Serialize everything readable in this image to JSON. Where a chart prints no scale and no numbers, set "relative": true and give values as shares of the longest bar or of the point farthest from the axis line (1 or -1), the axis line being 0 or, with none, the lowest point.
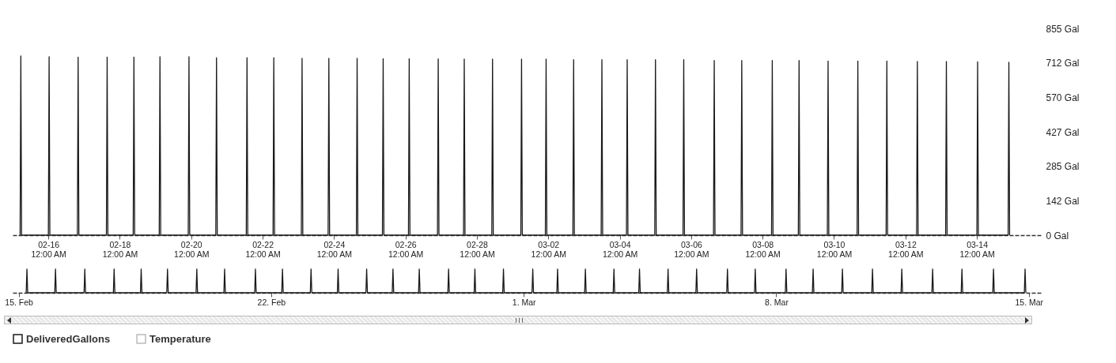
{
  "chart_data": [
    {
      "type": "line",
      "x": [
        "--02-15T05:00",
        "--02-15T05:30",
        "--02-15T06:00",
        "--02-16T00:00",
        "--02-16T00:30",
        "--02-16T01:00",
        "--02-16T19:30",
        "--02-16T20:00",
        "--02-16T20:30",
        "--02-17T15:00",
        "--02-17T15:30",
        "--02-17T16:00",
        "--02-18T09:00",
        "--02-18T09:30",
        "--02-18T10:00",
        "--02-19T02:30",
        "--02-19T03:00",
        "--02-19T03:30",
        "--02-19T22:00",
        "--02-19T22:30",
        "--02-19T23:00",
        "--02-20T16:30",
        "--02-20T17:00",
        "--02-20T17:30",
        "--02-21T13:00",
        "--02-21T13:30",
        "--02-21T14:00",
        "--02-22T07:00",
        "--02-22T07:30",
        "--02-22T08:00",
        "--02-23T02:00",
        "--02-23T02:30",
        "--02-23T03:00",
        "--02-23T20:00",
        "--02-23T20:30",
        "--02-23T21:00",
        "--02-24T15:00",
        "--02-24T15:30",
        "--02-24T16:00",
        "--02-25T08:30",
        "--02-25T09:00",
        "--02-25T09:30",
        "--02-26T02:00",
        "--02-26T02:30",
        "--02-26T03:00",
        "--02-26T21:30",
        "--02-26T22:00",
        "--02-26T22:30",
        "--02-27T15:00",
        "--02-27T15:30",
        "--02-27T16:00",
        "--02-28T10:00",
        "--02-28T10:30",
        "--02-28T11:00",
        "--03-01T05:30",
        "--03-01T06:00",
        "--03-01T06:30",
        "--03-01T22:00",
        "--03-01T22:30",
        "--03-01T23:00",
        "--03-02T16:30",
        "--03-02T17:00",
        "--03-02T17:30",
        "--03-03T11:30",
        "--03-03T12:00",
        "--03-03T12:30",
        "--03-04T04:30",
        "--03-04T05:00",
        "--03-04T05:30",
        "--03-04T23:30",
        "--03-05T00:00",
        "--03-05T00:30",
        "--03-05T18:30",
        "--03-05T19:00",
        "--03-05T19:30",
        "--03-06T15:00",
        "--03-06T15:30",
        "--03-06T16:00",
        "--03-07T09:30",
        "--03-07T10:00",
        "--03-07T10:30",
        "--03-08T06:00",
        "--03-08T06:30",
        "--03-08T07:00",
        "--03-09T00:00",
        "--03-09T00:30",
        "--03-09T01:00",
        "--03-09T19:30",
        "--03-09T20:00",
        "--03-09T20:30",
        "--03-10T15:30",
        "--03-10T16:00",
        "--03-10T16:30",
        "--03-11T11:00",
        "--03-11T11:30",
        "--03-11T12:00",
        "--03-12T07:30",
        "--03-12T08:00",
        "--03-12T08:30",
        "--03-13T03:00",
        "--03-13T03:30",
        "--03-13T04:00",
        "--03-14T00:00",
        "--03-14T00:30",
        "--03-14T01:00",
        "--03-14T21:00",
        "--03-14T21:30",
        "--03-14T22:00"
      ],
      "series": [
        {
          "name": "DeliveredGallons",
          "color": "#1a1a1a",
          "values": [
            0,
            741,
            0,
            0,
            738,
            0,
            0,
            736,
            0,
            0,
            736,
            0,
            0,
            736,
            0,
            0,
            738,
            0,
            0,
            738,
            0,
            0,
            734,
            0,
            0,
            734,
            0,
            0,
            734,
            0,
            0,
            731,
            0,
            0,
            731,
            0,
            0,
            731,
            0,
            0,
            730,
            0,
            0,
            730,
            0,
            0,
            729,
            0,
            0,
            728,
            0,
            0,
            728,
            0,
            0,
            728,
            0,
            0,
            728,
            0,
            0,
            726,
            0,
            0,
            726,
            0,
            0,
            726,
            0,
            0,
            726,
            0,
            0,
            726,
            0,
            0,
            722,
            0,
            0,
            722,
            0,
            0,
            722,
            0,
            0,
            722,
            0,
            0,
            720,
            0,
            0,
            720,
            0,
            0,
            720,
            0,
            0,
            718,
            0,
            0,
            718,
            0,
            0,
            717,
            0,
            0,
            715,
            0
          ]
        },
        {
          "name": "Temperature",
          "color": "#bbbbbb",
          "values": [
            null,
            null,
            null,
            null,
            null,
            null,
            null,
            null,
            null,
            null,
            null,
            null,
            null,
            null,
            null,
            null,
            null,
            null,
            null,
            null,
            null,
            null,
            null,
            null,
            null,
            null,
            null,
            null,
            null,
            null,
            null,
            null,
            null,
            null,
            null,
            null,
            null,
            null,
            null,
            null,
            null,
            null,
            null,
            null,
            null,
            null,
            null,
            null,
            null,
            null,
            null,
            null,
            null,
            null,
            null,
            null,
            null,
            null,
            null,
            null,
            null,
            null,
            null,
            null,
            null,
            null,
            null,
            null,
            null,
            null,
            null,
            null,
            null,
            null,
            null,
            null,
            null,
            null,
            null,
            null,
            null,
            null,
            null,
            null,
            null,
            null,
            null,
            null,
            null,
            null,
            null,
            null,
            null,
            null,
            null,
            null,
            null,
            null,
            null,
            null,
            null,
            null,
            null,
            null,
            null,
            null,
            null,
            null
          ]
        }
      ],
      "xlim": [
        "--02-15T00:00",
        "--03-15T19:00"
      ],
      "xticks": [
        {
          "value": "--02-16",
          "label": "02-16\n12:00 AM"
        },
        {
          "value": "--02-18",
          "label": "02-18\n12:00 AM"
        },
        {
          "value": "--02-20",
          "label": "02-20\n12:00 AM"
        },
        {
          "value": "--02-22",
          "label": "02-22\n12:00 AM"
        },
        {
          "value": "--02-24",
          "label": "02-24\n12:00 AM"
        },
        {
          "value": "--02-26",
          "label": "02-26\n12:00 AM"
        },
        {
          "value": "--02-28",
          "label": "02-28\n12:00 AM"
        },
        {
          "value": "--03-02",
          "label": "03-02\n12:00 AM"
        },
        {
          "value": "--03-04",
          "label": "03-04\n12:00 AM"
        },
        {
          "value": "--03-06",
          "label": "03-06\n12:00 AM"
        },
        {
          "value": "--03-08",
          "label": "03-08\n12:00 AM"
        },
        {
          "value": "--03-10",
          "label": "03-10\n12:00 AM"
        },
        {
          "value": "--03-12",
          "label": "03-12\n12:00 AM"
        },
        {
          "value": "--03-14",
          "label": "03-14\n12:00 AM"
        }
      ],
      "ylim": [
        0,
        855
      ],
      "yticks": [
        {
          "value": 0,
          "label": "0 Gal"
        },
        {
          "value": 142,
          "label": "142 Gal"
        },
        {
          "value": 285,
          "label": "285 Gal"
        },
        {
          "value": 427,
          "label": "427 Gal"
        },
        {
          "value": 570,
          "label": "570 Gal"
        },
        {
          "value": 712,
          "label": "712 Gal"
        },
        {
          "value": 855,
          "label": "855 Gal"
        }
      ],
      "legend": "bottom"
    },
    {
      "type": "line",
      "relative": true,
      "x": [
        "--02-15T05:00",
        "--02-15T05:30",
        "--02-15T06:00",
        "--02-16T00:00",
        "--02-16T00:30",
        "--02-16T01:00",
        "--02-16T19:30",
        "--02-16T20:00",
        "--02-16T20:30",
        "--02-17T15:00",
        "--02-17T15:30",
        "--02-17T16:00",
        "--02-18T09:00",
        "--02-18T09:30",
        "--02-18T10:00",
        "--02-19T02:30",
        "--02-19T03:00",
        "--02-19T03:30",
        "--02-19T22:00",
        "--02-19T22:30",
        "--02-19T23:00",
        "--02-20T16:30",
        "--02-20T17:00",
        "--02-20T17:30",
        "--02-21T13:00",
        "--02-21T13:30",
        "--02-21T14:00",
        "--02-22T07:00",
        "--02-22T07:30",
        "--02-22T08:00",
        "--02-23T02:00",
        "--02-23T02:30",
        "--02-23T03:00",
        "--02-23T20:00",
        "--02-23T20:30",
        "--02-23T21:00",
        "--02-24T15:00",
        "--02-24T15:30",
        "--02-24T16:00",
        "--02-25T08:30",
        "--02-25T09:00",
        "--02-25T09:30",
        "--02-26T02:00",
        "--02-26T02:30",
        "--02-26T03:00",
        "--02-26T21:30",
        "--02-26T22:00",
        "--02-26T22:30",
        "--02-27T15:00",
        "--02-27T15:30",
        "--02-27T16:00",
        "--02-28T10:00",
        "--02-28T10:30",
        "--02-28T11:00",
        "--03-01T05:30",
        "--03-01T06:00",
        "--03-01T06:30",
        "--03-01T22:00",
        "--03-01T22:30",
        "--03-01T23:00",
        "--03-02T16:30",
        "--03-02T17:00",
        "--03-02T17:30",
        "--03-03T11:30",
        "--03-03T12:00",
        "--03-03T12:30",
        "--03-04T04:30",
        "--03-04T05:00",
        "--03-04T05:30",
        "--03-04T23:30",
        "--03-05T00:00",
        "--03-05T00:30",
        "--03-05T18:30",
        "--03-05T19:00",
        "--03-05T19:30",
        "--03-06T15:00",
        "--03-06T15:30",
        "--03-06T16:00",
        "--03-07T09:30",
        "--03-07T10:00",
        "--03-07T10:30",
        "--03-08T06:00",
        "--03-08T06:30",
        "--03-08T07:00",
        "--03-09T00:00",
        "--03-09T00:30",
        "--03-09T01:00",
        "--03-09T19:30",
        "--03-09T20:00",
        "--03-09T20:30",
        "--03-10T15:30",
        "--03-10T16:00",
        "--03-10T16:30",
        "--03-11T11:00",
        "--03-11T11:30",
        "--03-11T12:00",
        "--03-12T07:30",
        "--03-12T08:00",
        "--03-12T08:30",
        "--03-13T03:00",
        "--03-13T03:30",
        "--03-13T04:00",
        "--03-14T00:00",
        "--03-14T00:30",
        "--03-14T01:00",
        "--03-14T21:00",
        "--03-14T21:30",
        "--03-14T22:00"
      ],
      "series": [
        {
          "color": "#1a1a1a",
          "values": [
            0,
            1,
            0,
            0,
            1,
            0,
            0,
            1,
            0,
            0,
            1,
            0,
            0,
            1,
            0,
            0,
            1,
            0,
            0,
            1,
            0,
            0,
            1,
            0,
            0,
            1,
            0,
            0,
            1,
            0,
            0,
            1,
            0,
            0,
            1,
            0,
            0,
            1,
            0,
            0,
            1,
            0,
            0,
            1,
            0,
            0,
            1,
            0,
            0,
            1,
            0,
            0,
            1,
            0,
            0,
            1,
            0,
            0,
            1,
            0,
            0,
            1,
            0,
            0,
            1,
            0,
            0,
            1,
            0,
            0,
            1,
            0,
            0,
            1,
            0,
            0,
            1,
            0,
            0,
            1,
            0,
            0,
            1,
            0,
            0,
            1,
            0,
            0,
            1,
            0,
            0,
            1,
            0,
            0,
            1,
            0,
            0,
            1,
            0,
            0,
            1,
            0,
            0,
            1,
            0,
            0,
            1,
            0
          ]
        }
      ],
      "xlim": [
        "--02-14T20:00",
        "--03-15T08:00"
      ],
      "xticks": [
        {
          "value": "--02-15",
          "label": "15. Feb"
        },
        {
          "value": "--02-22",
          "label": "22. Feb"
        },
        {
          "value": "--03-01",
          "label": "1. Mar"
        },
        {
          "value": "--03-08",
          "label": "8. Mar"
        },
        {
          "value": "--03-15",
          "label": "15. Mar"
        }
      ]
    }
  ]
}
